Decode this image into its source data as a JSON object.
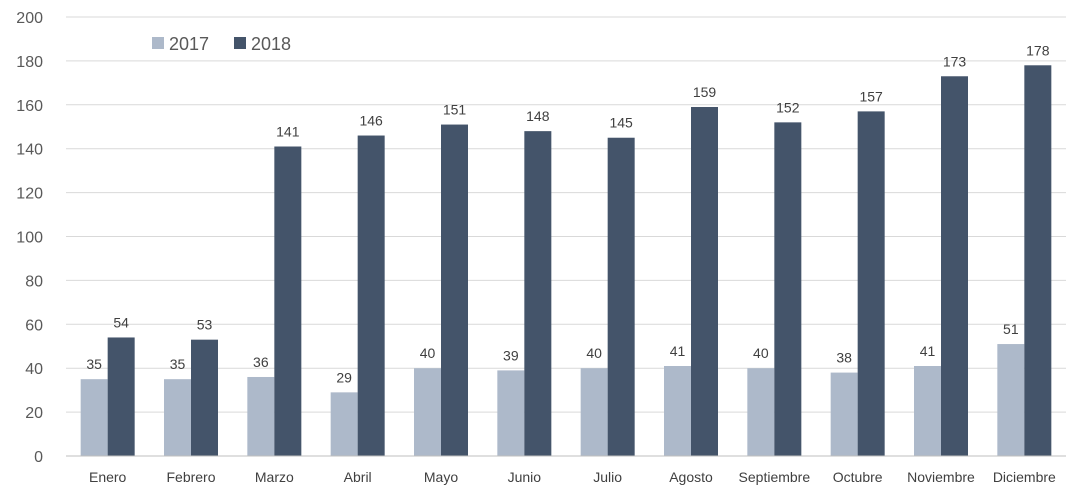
{
  "chart_data": {
    "type": "bar",
    "categories": [
      "Enero",
      "Febrero",
      "Marzo",
      "Abril",
      "Mayo",
      "Junio",
      "Julio",
      "Agosto",
      "Septiembre",
      "Octubre",
      "Noviembre",
      "Diciembre"
    ],
    "series": [
      {
        "name": "2017",
        "color": "#adb9ca",
        "values": [
          35,
          35,
          36,
          29,
          40,
          39,
          40,
          41,
          40,
          38,
          41,
          51
        ]
      },
      {
        "name": "2018",
        "color": "#44546a",
        "values": [
          54,
          53,
          141,
          146,
          151,
          148,
          145,
          159,
          152,
          157,
          173,
          178
        ]
      }
    ],
    "yticks": [
      "0",
      "20",
      "40",
      "60",
      "80",
      "100",
      "120",
      "140",
      "160",
      "180",
      "200"
    ],
    "ylim": [
      0,
      200
    ],
    "grid": true,
    "legend": "top-left",
    "data_labels": true
  }
}
